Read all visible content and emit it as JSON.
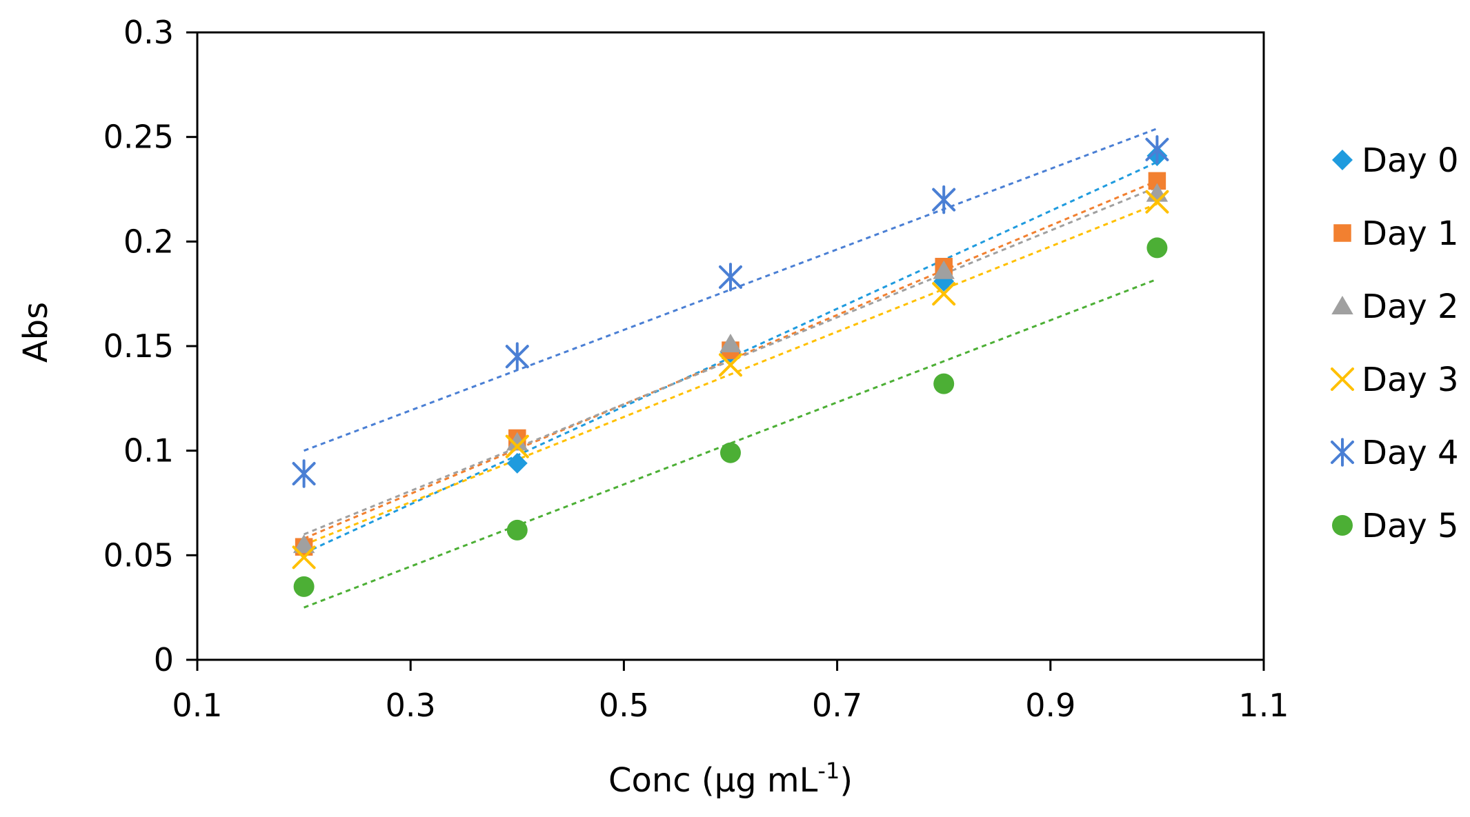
{
  "chart_data": {
    "type": "scatter",
    "title": "",
    "xlabel": "Conc (μg mL",
    "xlabel_sup": "-1",
    "xlabel_close": ")",
    "ylabel": "Abs",
    "xlim": [
      0.1,
      1.1
    ],
    "ylim": [
      0,
      0.3
    ],
    "x_ticks": [
      0.1,
      0.3,
      0.5,
      0.7,
      0.9,
      1.1
    ],
    "x_tick_labels": [
      "0.1",
      "0.3",
      "0.5",
      "0.7",
      "0.9",
      "1.1"
    ],
    "y_ticks": [
      0,
      0.05,
      0.1,
      0.15,
      0.2,
      0.25,
      0.3
    ],
    "y_tick_labels": [
      "0",
      "0.05",
      "0.1",
      "0.15",
      "0.2",
      "0.25",
      "0.3"
    ],
    "grid": false,
    "legend_position": "right",
    "x": [
      0.2,
      0.4,
      0.6,
      0.8,
      1.0
    ],
    "series": [
      {
        "name": "Day 0",
        "marker": "diamond",
        "color": "#1F9BDE",
        "values": [
          0.053,
          0.094,
          0.147,
          0.181,
          0.241
        ],
        "trend": [
          0.051,
          0.238
        ]
      },
      {
        "name": "Day 1",
        "marker": "square",
        "color": "#F28030",
        "values": [
          0.054,
          0.106,
          0.148,
          0.188,
          0.229
        ],
        "trend": [
          0.058,
          0.229
        ]
      },
      {
        "name": "Day 2",
        "marker": "triangle",
        "color": "#A0A0A0",
        "values": [
          0.055,
          0.104,
          0.151,
          0.186,
          0.223
        ],
        "trend": [
          0.06,
          0.226
        ]
      },
      {
        "name": "Day 3",
        "marker": "x",
        "color": "#FFC000",
        "values": [
          0.049,
          0.102,
          0.141,
          0.175,
          0.219
        ],
        "trend": [
          0.055,
          0.218
        ]
      },
      {
        "name": "Day 4",
        "marker": "star",
        "color": "#4A7FD4",
        "values": [
          0.089,
          0.145,
          0.183,
          0.22,
          0.244
        ],
        "trend": [
          0.1,
          0.254
        ]
      },
      {
        "name": "Day 5",
        "marker": "circle",
        "color": "#4CAF35",
        "values": [
          0.035,
          0.062,
          0.099,
          0.132,
          0.197
        ],
        "trend": [
          0.025,
          0.182
        ]
      }
    ]
  }
}
